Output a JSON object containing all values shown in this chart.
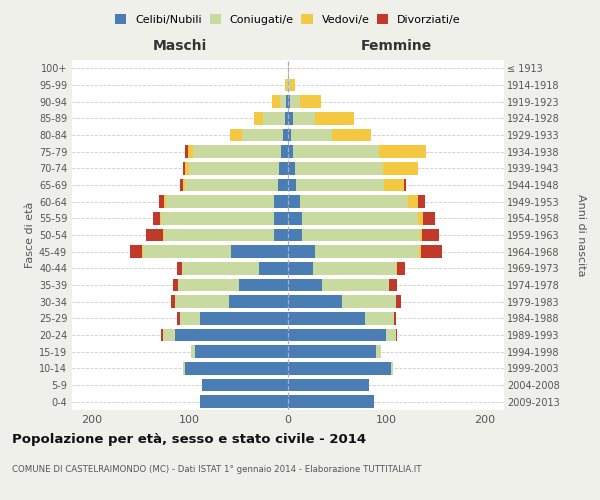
{
  "age_groups": [
    "0-4",
    "5-9",
    "10-14",
    "15-19",
    "20-24",
    "25-29",
    "30-34",
    "35-39",
    "40-44",
    "45-49",
    "50-54",
    "55-59",
    "60-64",
    "65-69",
    "70-74",
    "75-79",
    "80-84",
    "85-89",
    "90-94",
    "95-99",
    "100+"
  ],
  "birth_years": [
    "2009-2013",
    "2004-2008",
    "1999-2003",
    "1994-1998",
    "1989-1993",
    "1984-1988",
    "1979-1983",
    "1974-1978",
    "1969-1973",
    "1964-1968",
    "1959-1963",
    "1954-1958",
    "1949-1953",
    "1944-1948",
    "1939-1943",
    "1934-1938",
    "1929-1933",
    "1924-1928",
    "1919-1923",
    "1914-1918",
    "≤ 1913"
  ],
  "male": {
    "celibi": [
      90,
      88,
      105,
      95,
      115,
      90,
      60,
      50,
      30,
      58,
      14,
      14,
      14,
      10,
      9,
      7,
      5,
      3,
      2,
      0,
      0
    ],
    "coniugati": [
      0,
      0,
      2,
      4,
      12,
      20,
      55,
      62,
      78,
      90,
      112,
      115,
      110,
      95,
      92,
      90,
      42,
      22,
      6,
      1,
      0
    ],
    "vedovi": [
      0,
      0,
      0,
      0,
      0,
      0,
      0,
      0,
      0,
      1,
      1,
      1,
      2,
      2,
      4,
      5,
      12,
      10,
      8,
      2,
      0
    ],
    "divorziati": [
      0,
      0,
      0,
      0,
      2,
      3,
      4,
      5,
      5,
      12,
      18,
      8,
      5,
      3,
      2,
      3,
      0,
      0,
      0,
      0,
      0
    ]
  },
  "female": {
    "nubili": [
      88,
      82,
      105,
      90,
      100,
      78,
      55,
      35,
      25,
      28,
      14,
      14,
      12,
      8,
      7,
      5,
      3,
      5,
      2,
      0,
      0
    ],
    "coniugate": [
      0,
      0,
      2,
      5,
      10,
      30,
      55,
      68,
      85,
      105,
      120,
      118,
      110,
      90,
      90,
      88,
      42,
      22,
      10,
      2,
      0
    ],
    "vedove": [
      0,
      0,
      0,
      0,
      0,
      0,
      0,
      0,
      1,
      2,
      2,
      6,
      10,
      20,
      35,
      48,
      40,
      40,
      22,
      5,
      1
    ],
    "divorziate": [
      0,
      0,
      0,
      0,
      1,
      2,
      5,
      8,
      8,
      22,
      18,
      12,
      8,
      2,
      0,
      0,
      0,
      0,
      0,
      0,
      0
    ]
  },
  "colors": {
    "celibi": "#4b7db5",
    "coniugati": "#c8daa0",
    "vedovi": "#f5c842",
    "divorziati": "#c0392b"
  },
  "xlim": 220,
  "title": "Popolazione per età, sesso e stato civile - 2014",
  "subtitle": "COMUNE DI CASTELRAIMONDO (MC) - Dati ISTAT 1° gennaio 2014 - Elaborazione TUTTITALIA.IT",
  "ylabel": "Fasce di età",
  "ylabel_right": "Anni di nascita",
  "label_maschi": "Maschi",
  "label_femmine": "Femmine",
  "legend_labels": [
    "Celibi/Nubili",
    "Coniugati/e",
    "Vedovi/e",
    "Divorziati/e"
  ],
  "background_color": "#f0f0eb",
  "plot_bg_color": "#ffffff"
}
